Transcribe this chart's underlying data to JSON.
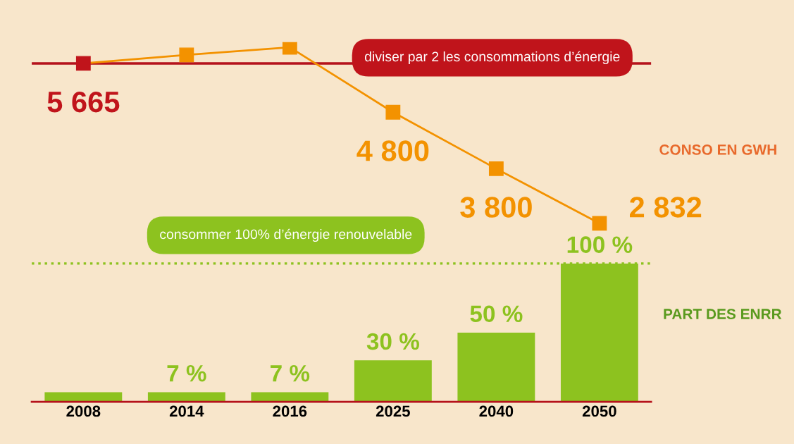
{
  "chart_data": {
    "type": "bar",
    "categories": [
      "2008",
      "2014",
      "2016",
      "2025",
      "2040",
      "2050"
    ],
    "series": [
      {
        "color": "#8dc21f",
        "values": [
          7,
          7,
          7,
          30,
          50,
          100
        ],
        "value_labels": [
          null,
          "7 %",
          "7 %",
          "30 %",
          "50 %",
          "100 %"
        ]
      },
      {
        "type": "line",
        "axis": "y2",
        "color": "#f39200",
        "colors": [
          "#c0141b",
          "#f39200",
          "#f39200",
          "#f39200",
          "#f39200",
          "#f39200"
        ],
        "values": [
          5665,
          5815,
          5950,
          4800,
          3800,
          2832
        ],
        "value_labels": [
          "5 665",
          null,
          null,
          "4 800",
          "3 800",
          "2 832"
        ]
      }
    ],
    "ylim": [
      0,
      260
    ],
    "y2lim": [
      -328,
      6040
    ],
    "tick_labels": "x",
    "marker": "square",
    "line_style": "solid",
    "grid": false,
    "legend": false,
    "ref_lines": [
      {
        "axis": "y2",
        "value": 5665,
        "color": "#b5121b",
        "line_style": "solid"
      },
      {
        "axis": "y",
        "value": 100,
        "color": "#8dc21f",
        "line_style": "dotted"
      }
    ],
    "annotations": [
      "diviser par 2 les consommations d’énergie",
      "consommer 100% d’énergie renouvelable",
      "CONSO EN GWH",
      "PART DES ENRR"
    ]
  }
}
